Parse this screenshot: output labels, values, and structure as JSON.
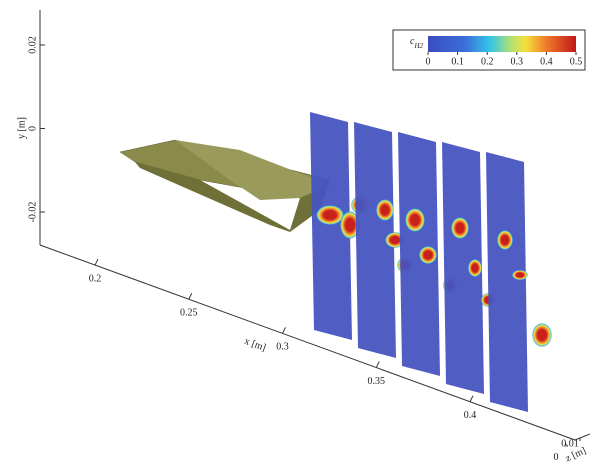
{
  "figure": {
    "y_axis": {
      "label": "y [m]",
      "ticks": [
        0.02,
        0,
        -0.02
      ]
    },
    "x_axis": {
      "label": "x [m]",
      "ticks": [
        0.2,
        0.25,
        0.3,
        0.35,
        0.4
      ]
    },
    "z_axis": {
      "label": "z [m]",
      "ticks": [
        0.01,
        0
      ]
    },
    "colorbar": {
      "label": "c",
      "label_subscript": "H2",
      "ticks": [
        0,
        0.1,
        0.2,
        0.3,
        0.4,
        0.5
      ]
    }
  }
}
